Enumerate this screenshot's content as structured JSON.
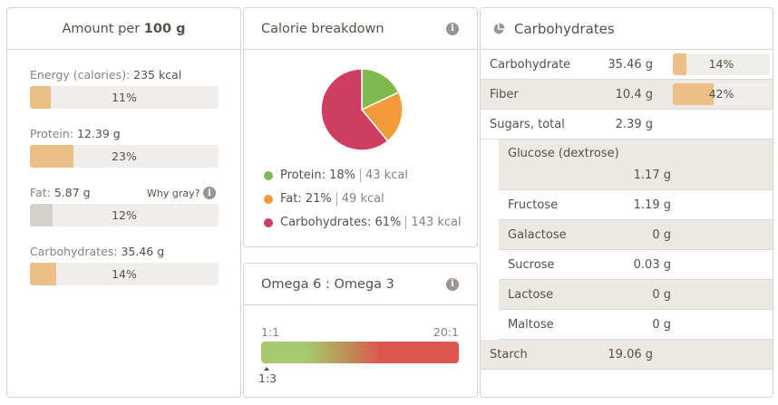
{
  "amount": {
    "prefix": "Amount per",
    "amount": "100 g",
    "items": [
      {
        "label": "Energy (calories):",
        "value": "235 kcal",
        "percent": 11,
        "pct_label": "11%",
        "color": "#ebbf87"
      },
      {
        "label": "Protein:",
        "value": "12.39 g",
        "percent": 23,
        "pct_label": "23%",
        "color": "#ebbf87"
      },
      {
        "label": "Fat:",
        "value": "5.87 g",
        "percent": 12,
        "pct_label": "12%",
        "color": "#d5d1cd",
        "note": "Why gray?"
      },
      {
        "label": "Carbohydrates:",
        "value": "35.46 g",
        "percent": 14,
        "pct_label": "14%",
        "color": "#ebbf87"
      }
    ]
  },
  "calorie": {
    "title": "Calorie breakdown",
    "slices": [
      {
        "name": "Protein:",
        "pct": "18%",
        "kcal": "43 kcal",
        "value": 18,
        "color": "#7fba4f"
      },
      {
        "name": "Fat:",
        "pct": "21%",
        "kcal": "49 kcal",
        "value": 21,
        "color": "#f29b38"
      },
      {
        "name": "Carbohydrates:",
        "pct": "61%",
        "kcal": "143 kcal",
        "value": 61,
        "color": "#cf3e60"
      }
    ]
  },
  "omega": {
    "title": "Omega 6 : Omega 3",
    "min": "1:1",
    "max": "20:1",
    "marker": "1:3"
  },
  "carbs": {
    "title": "Carbohydrates",
    "rows": [
      {
        "name": "Carbohydrate",
        "value": "35.46 g",
        "pct_label": "14%",
        "percent": 14
      },
      {
        "name": "Fiber",
        "value": "10.4 g",
        "pct_label": "42%",
        "percent": 42
      },
      {
        "name": "Sugars, total",
        "value": "2.39 g"
      },
      {
        "name": "Glucose (dextrose)",
        "value": "1.17 g"
      },
      {
        "name": "Fructose",
        "value": "1.19 g"
      },
      {
        "name": "Galactose",
        "value": "0 g"
      },
      {
        "name": "Sucrose",
        "value": "0.03 g"
      },
      {
        "name": "Lactose",
        "value": "0 g"
      },
      {
        "name": "Maltose",
        "value": "0 g"
      },
      {
        "name": "Starch",
        "value": "19.06 g"
      }
    ]
  }
}
